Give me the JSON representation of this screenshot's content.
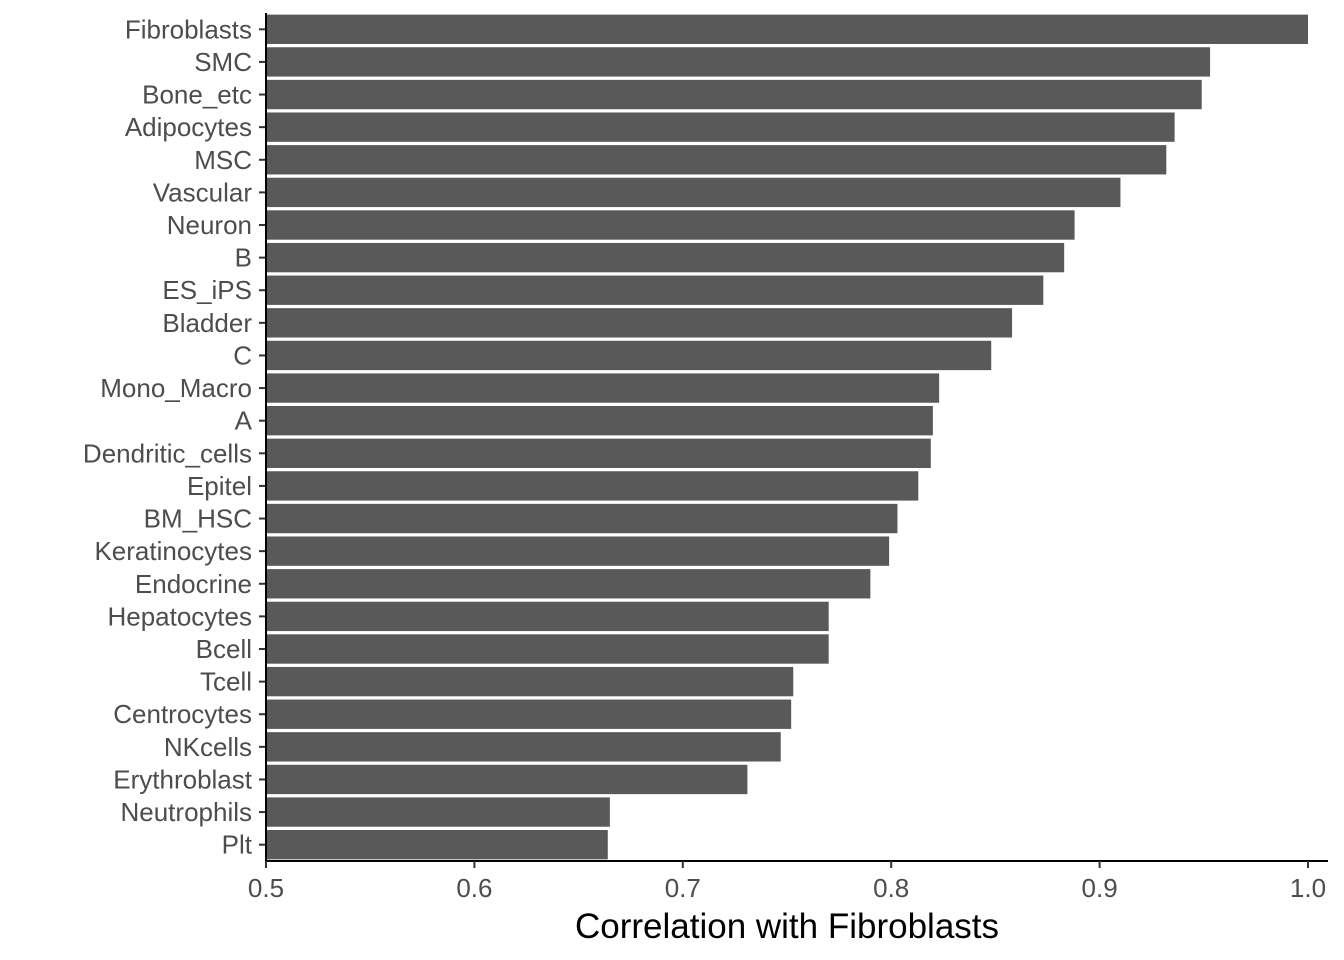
{
  "chart_data": {
    "type": "bar",
    "orientation": "horizontal",
    "title": "",
    "xlabel": "Correlation with Fibroblasts",
    "ylabel": "",
    "xlim": [
      0.5,
      1.0
    ],
    "x_ticks": [
      {
        "value": 0.5,
        "label": "0.5"
      },
      {
        "value": 0.6,
        "label": "0.6"
      },
      {
        "value": 0.7,
        "label": "0.7"
      },
      {
        "value": 0.8,
        "label": "0.8"
      },
      {
        "value": 0.9,
        "label": "0.9"
      },
      {
        "value": 1.0,
        "label": "1.0"
      }
    ],
    "categories": [
      "Fibroblasts",
      "SMC",
      "Bone_etc",
      "Adipocytes",
      "MSC",
      "Vascular",
      "Neuron",
      "B",
      "ES_iPS",
      "Bladder",
      "C",
      "Mono_Macro",
      "A",
      "Dendritic_cells",
      "Epitel",
      "BM_HSC",
      "Keratinocytes",
      "Endocrine",
      "Hepatocytes",
      "Bcell",
      "Tcell",
      "Centrocytes",
      "NKcells",
      "Erythroblast",
      "Neutrophils",
      "Plt"
    ],
    "values": [
      1.0,
      0.953,
      0.949,
      0.936,
      0.932,
      0.91,
      0.888,
      0.883,
      0.873,
      0.858,
      0.848,
      0.823,
      0.82,
      0.819,
      0.813,
      0.803,
      0.799,
      0.79,
      0.77,
      0.77,
      0.753,
      0.752,
      0.747,
      0.731,
      0.665,
      0.664
    ],
    "bar_color": "#595959",
    "grid": false
  }
}
